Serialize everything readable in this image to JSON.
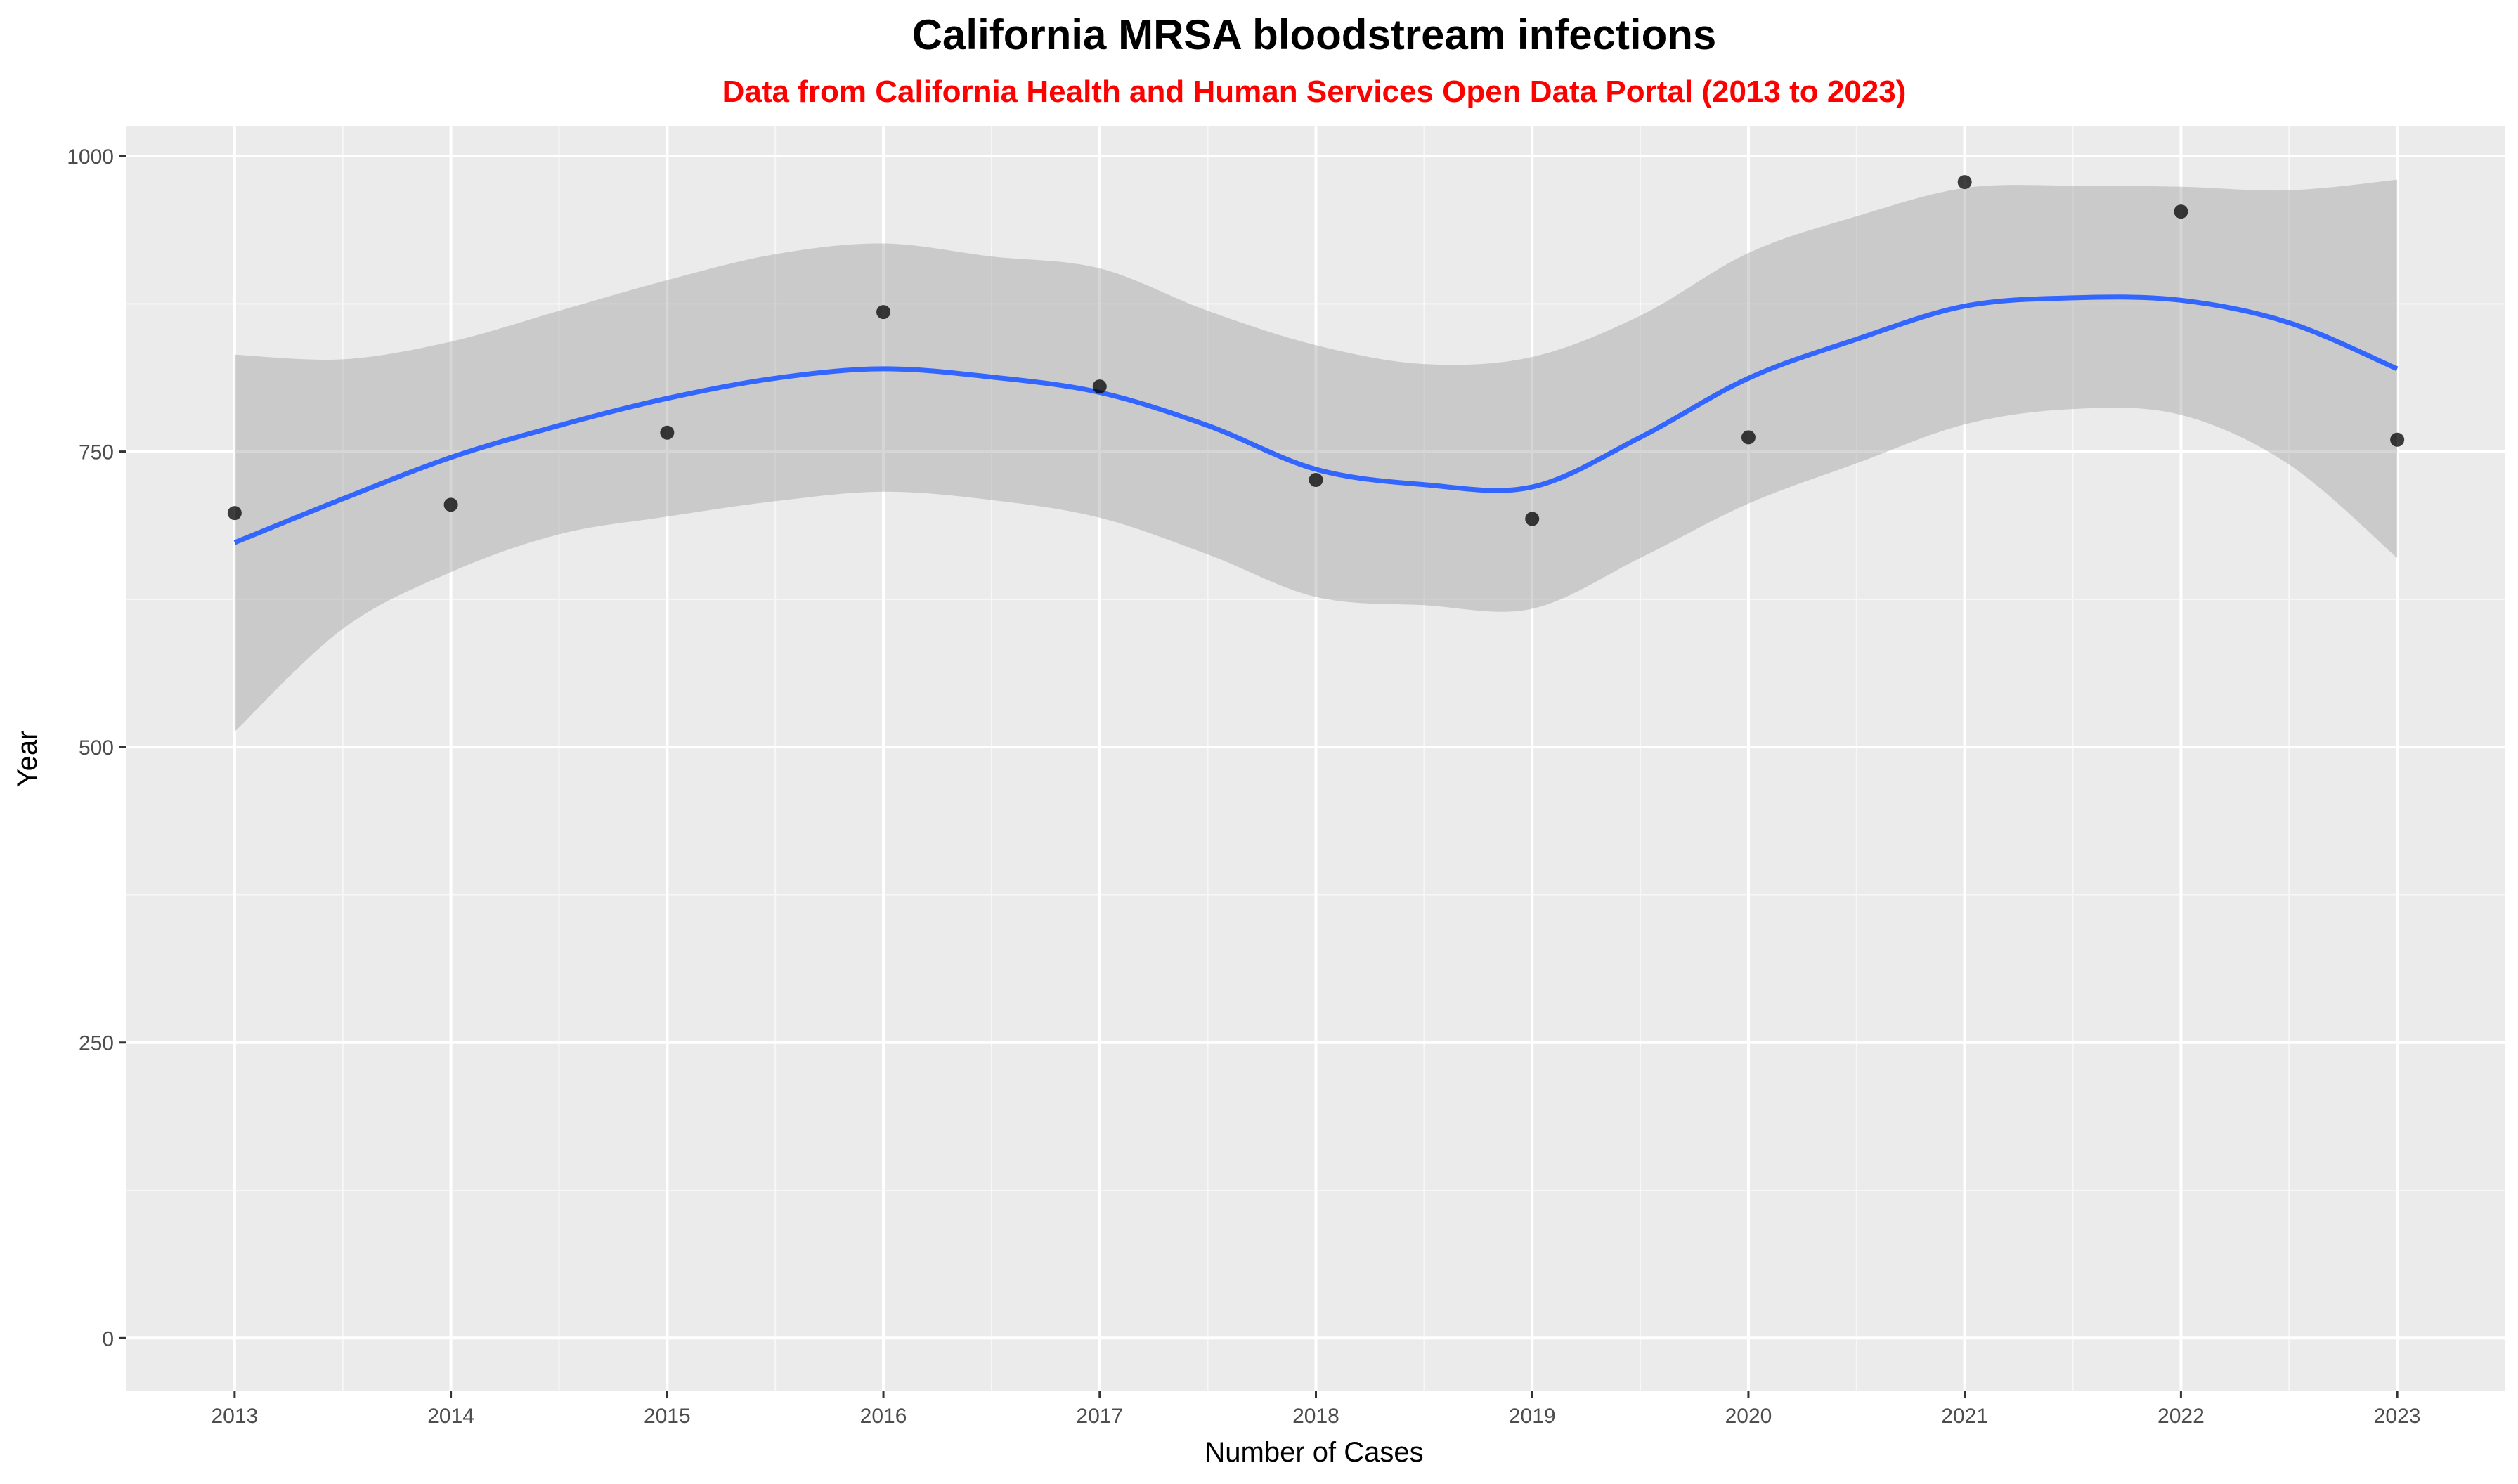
{
  "colors": {
    "panel_background": "#ebebeb",
    "grid_major": "#ffffff",
    "grid_minor": "#f7f7f7",
    "smooth_line": "#3366ff",
    "confidence_band": "#999999",
    "points": "#000000",
    "subtitle": "#ff0000"
  },
  "chart_data": {
    "type": "scatter",
    "title": "California MRSA bloodstream infections",
    "subtitle": "Data from California Health and Human Services Open Data Portal (2013 to 2023)",
    "xlabel": "Number of Cases",
    "ylabel": "Year",
    "xlim": [
      2012.5,
      2023.5
    ],
    "ylim": [
      -45,
      1025
    ],
    "x_ticks": [
      2013,
      2014,
      2015,
      2016,
      2017,
      2018,
      2019,
      2020,
      2021,
      2022,
      2023
    ],
    "x_tick_labels": [
      "2013",
      "2014",
      "2015",
      "2016",
      "2017",
      "2018",
      "2019",
      "2020",
      "2021",
      "2022",
      "2023"
    ],
    "y_ticks": [
      0,
      250,
      500,
      750,
      1000
    ],
    "y_tick_labels": [
      "0",
      "250",
      "500",
      "750",
      "1000"
    ],
    "grid": true,
    "legend": "none",
    "points": {
      "x": [
        2013,
        2014,
        2015,
        2016,
        2017,
        2018,
        2019,
        2020,
        2021,
        2022,
        2023
      ],
      "y": [
        698,
        705,
        766,
        868,
        805,
        726,
        693,
        762,
        978,
        953,
        760
      ]
    },
    "smooth": {
      "method": "loess",
      "x": [
        2013,
        2013.5,
        2014,
        2014.5,
        2015,
        2015.5,
        2016,
        2016.5,
        2017,
        2017.5,
        2018,
        2018.5,
        2019,
        2019.5,
        2020,
        2020.5,
        2021,
        2021.5,
        2022,
        2022.5,
        2023
      ],
      "y": [
        673,
        710,
        745,
        772,
        795,
        812,
        820,
        813,
        800,
        772,
        735,
        722,
        720,
        762,
        812,
        845,
        873,
        880,
        878,
        859,
        820
      ],
      "lower": [
        513,
        600,
        648,
        680,
        695,
        708,
        716,
        709,
        694,
        663,
        627,
        620,
        617,
        660,
        706,
        740,
        773,
        786,
        781,
        739,
        660
      ],
      "upper": [
        832,
        828,
        843,
        869,
        895,
        917,
        926,
        915,
        905,
        869,
        840,
        824,
        830,
        865,
        918,
        949,
        973,
        975,
        974,
        971,
        980
      ]
    }
  }
}
